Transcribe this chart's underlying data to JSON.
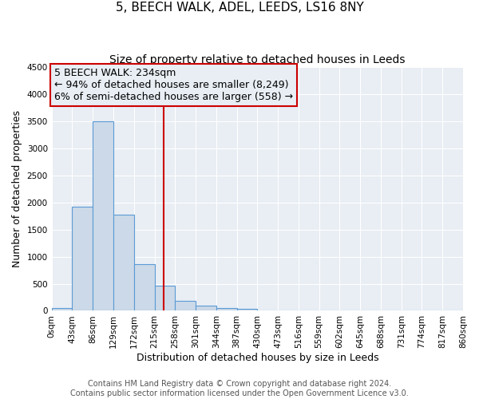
{
  "title": "5, BEECH WALK, ADEL, LEEDS, LS16 8NY",
  "subtitle": "Size of property relative to detached houses in Leeds",
  "xlabel": "Distribution of detached houses by size in Leeds",
  "ylabel": "Number of detached properties",
  "bin_edges": [
    0,
    43,
    86,
    129,
    172,
    215,
    258,
    301,
    344,
    387,
    430,
    473,
    516,
    559,
    602,
    645,
    688,
    731,
    774,
    817,
    860
  ],
  "bin_labels": [
    "0sqm",
    "43sqm",
    "86sqm",
    "129sqm",
    "172sqm",
    "215sqm",
    "258sqm",
    "301sqm",
    "344sqm",
    "387sqm",
    "430sqm",
    "473sqm",
    "516sqm",
    "559sqm",
    "602sqm",
    "645sqm",
    "688sqm",
    "731sqm",
    "774sqm",
    "817sqm",
    "860sqm"
  ],
  "counts": [
    50,
    1920,
    3500,
    1780,
    860,
    460,
    190,
    100,
    55,
    30,
    10,
    0,
    0,
    0,
    0,
    0,
    0,
    0,
    0,
    0
  ],
  "bar_color": "#ccd9e8",
  "bar_edge_color": "#5b9bd5",
  "vline_x": 234,
  "vline_color": "#cc0000",
  "annotation_line1": "5 BEECH WALK: 234sqm",
  "annotation_line2": "← 94% of detached houses are smaller (8,249)",
  "annotation_line3": "6% of semi-detached houses are larger (558) →",
  "annotation_box_color": "#cc0000",
  "ylim": [
    0,
    4500
  ],
  "xlim": [
    0,
    860
  ],
  "yticks": [
    0,
    500,
    1000,
    1500,
    2000,
    2500,
    3000,
    3500,
    4000,
    4500
  ],
  "footer1": "Contains HM Land Registry data © Crown copyright and database right 2024.",
  "footer2": "Contains public sector information licensed under the Open Government Licence v3.0.",
  "bg_color": "#ffffff",
  "plot_bg_color": "#e8eef4",
  "grid_color": "#ffffff",
  "title_fontsize": 11,
  "subtitle_fontsize": 10,
  "axis_label_fontsize": 9,
  "tick_fontsize": 7.5,
  "footer_fontsize": 7,
  "annotation_fontsize": 9
}
